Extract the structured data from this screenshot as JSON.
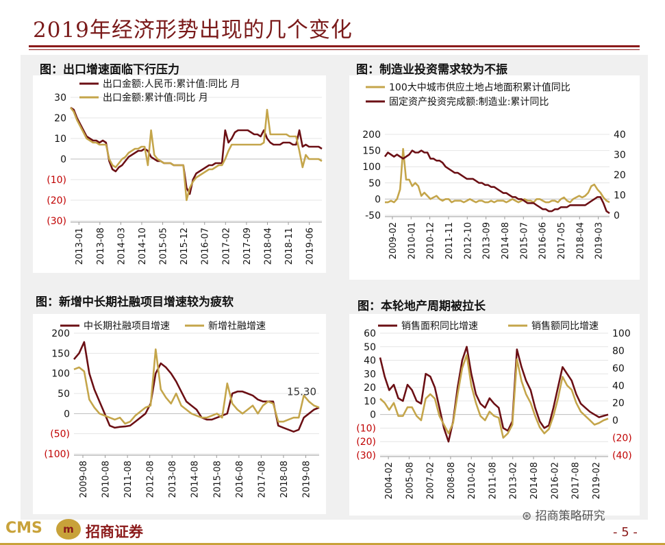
{
  "page": {
    "title": "2019年经济形势出现的几个变化",
    "page_number": "- 5 -",
    "wechat": "招商策略研究",
    "logo": "CMS",
    "brand": "招商证券",
    "colors": {
      "dark": "#6b0f14",
      "gold": "#c4a54a",
      "red_label": "#c00000"
    }
  },
  "chart_data": [
    {
      "type": "line",
      "panel_title": "图：出口增速面临下行压力",
      "y_ticks": [
        "30",
        "20",
        "10",
        "0",
        "(10)",
        "(20)",
        "(30)"
      ],
      "ylim": [
        -30,
        30
      ],
      "x_ticks": [
        "2013-01",
        "2013-08",
        "2014-03",
        "2014-10",
        "2015-05",
        "2015-12",
        "2016-07",
        "2017-02",
        "2017-09",
        "2018-04",
        "2018-11",
        "2019-06"
      ],
      "series": [
        {
          "name": "出口金额:人民币:累计值:同比  月",
          "color": "#6b0f14",
          "values": [
            25,
            24,
            20,
            17,
            14,
            11,
            10,
            9,
            9,
            8,
            9,
            8,
            -1,
            -5,
            -6,
            -4,
            -3,
            -1,
            1,
            2,
            3,
            4,
            4,
            5,
            4,
            1,
            0,
            -1,
            -1,
            -2,
            -2,
            -2,
            -3,
            -3,
            -3,
            -3,
            -14,
            -17,
            -10,
            -7,
            -6,
            -5,
            -4,
            -3,
            -3,
            -2,
            -2,
            -2,
            14,
            8,
            10,
            13,
            14,
            14,
            14,
            14,
            13,
            12,
            12,
            11,
            14,
            10,
            8,
            7,
            7,
            7,
            8,
            8,
            8,
            7,
            7,
            14,
            6,
            7,
            6,
            6,
            6,
            6,
            5
          ]
        },
        {
          "name": "出口金额:累计值:同比  月",
          "color": "#c4a54a",
          "values": [
            25,
            23,
            19,
            16,
            13,
            10,
            9,
            8,
            8,
            7,
            7,
            7,
            0,
            -3,
            -4,
            -2,
            0,
            1,
            3,
            4,
            5,
            5,
            6,
            6,
            -3,
            14,
            2,
            0,
            -1,
            -2,
            -2,
            -2,
            -3,
            -3,
            -3,
            -3,
            -20,
            -14,
            -11,
            -9,
            -8,
            -7,
            -6,
            -5,
            -5,
            -4,
            -3,
            -3,
            0,
            4,
            7,
            7,
            7,
            7,
            7,
            7,
            7,
            7,
            7,
            7,
            8,
            24,
            12,
            12,
            12,
            12,
            12,
            12,
            11,
            11,
            11,
            4,
            -4,
            2,
            0,
            0,
            0,
            0,
            -1
          ]
        }
      ]
    },
    {
      "type": "line",
      "panel_title": "图：制造业投资需求较为不振",
      "y_ticks_left": [
        "200",
        "150",
        "100",
        "50",
        "0",
        "-50"
      ],
      "ylim_left": [
        -50,
        200
      ],
      "y_ticks_right": [
        "40",
        "30",
        "20",
        "10",
        "0"
      ],
      "ylim_right": [
        0,
        40
      ],
      "x_ticks": [
        "2009-02",
        "2010-01",
        "2010-12",
        "2011-11",
        "2012-10",
        "2013-09",
        "2014-08",
        "2015-07",
        "2016-06",
        "2017-05",
        "2018-04",
        "2019-03"
      ],
      "series": [
        {
          "name": "100大中城市供应土地占地面积累计值同比",
          "color": "#c4a54a",
          "axis": "left",
          "values": [
            -10,
            -10,
            -5,
            -10,
            0,
            30,
            155,
            60,
            60,
            40,
            50,
            40,
            10,
            20,
            10,
            0,
            5,
            10,
            0,
            -5,
            0,
            0,
            -10,
            -5,
            -5,
            -5,
            -10,
            -5,
            0,
            -5,
            -10,
            -5,
            -5,
            -10,
            -10,
            -5,
            -10,
            -5,
            -5,
            -5,
            -10,
            -5,
            0,
            -5,
            -10,
            -5,
            0,
            -5,
            -5,
            -10,
            0,
            0,
            -5,
            -10,
            -10,
            -5,
            -5,
            -10,
            0,
            5,
            -5,
            -10,
            0,
            5,
            10,
            5,
            10,
            20,
            40,
            45,
            30,
            20,
            5,
            -5,
            -10
          ]
        },
        {
          "name": "固定资产投资完成额:制造业:累计同比",
          "color": "#6b0f14",
          "axis": "right",
          "values": [
            29,
            31,
            30,
            29,
            30,
            29,
            28,
            29,
            30,
            32,
            31,
            31,
            32,
            31,
            31,
            28,
            28,
            27,
            27,
            26,
            24,
            23,
            22,
            21,
            21,
            20,
            19,
            18,
            18,
            18,
            17,
            16,
            16,
            15,
            15,
            14,
            14,
            13,
            12,
            11,
            11,
            10,
            9,
            9,
            8,
            8,
            7,
            6,
            6,
            6,
            5,
            4,
            3,
            3,
            2,
            2,
            3,
            3,
            4,
            4,
            4,
            5,
            5,
            5,
            5,
            5,
            5,
            6,
            7,
            8,
            9,
            9,
            6,
            2,
            1
          ]
        }
      ]
    },
    {
      "type": "line",
      "panel_title": "图：新增中长期社融项目增速较为疲软",
      "y_ticks": [
        "200",
        "150",
        "100",
        "50",
        "0",
        "(50)",
        "(100)"
      ],
      "ylim": [
        -100,
        200
      ],
      "x_ticks": [
        "2009-08",
        "2010-08",
        "2011-08",
        "2012-08",
        "2013-08",
        "2014-08",
        "2015-08",
        "2016-08",
        "2017-08",
        "2018-08",
        "2019-08"
      ],
      "annotation": "15.30",
      "series": [
        {
          "name": "中长期社融项目增速",
          "color": "#6b0f14",
          "values": [
            135,
            150,
            178,
            100,
            60,
            30,
            0,
            -30,
            -35,
            -33,
            -32,
            -30,
            -20,
            -10,
            0,
            25,
            100,
            125,
            115,
            100,
            80,
            55,
            30,
            20,
            10,
            -10,
            -15,
            -15,
            -10,
            -5,
            0,
            50,
            55,
            55,
            50,
            45,
            35,
            30,
            30,
            30,
            -30,
            -35,
            -40,
            -45,
            -40,
            -10,
            0,
            10,
            15
          ]
        },
        {
          "name": "新增社融增速",
          "color": "#c4a54a",
          "values": [
            110,
            115,
            105,
            35,
            15,
            0,
            -5,
            -10,
            -15,
            -10,
            -25,
            -20,
            -5,
            5,
            15,
            20,
            160,
            60,
            40,
            25,
            50,
            20,
            10,
            0,
            -5,
            -10,
            -10,
            -5,
            0,
            -10,
            75,
            25,
            10,
            0,
            10,
            20,
            0,
            20,
            30,
            25,
            -20,
            -20,
            -15,
            -10,
            -10,
            45,
            30,
            20,
            15.3
          ]
        }
      ]
    },
    {
      "type": "line",
      "panel_title": "图：本轮地产周期被拉长",
      "y_ticks_left": [
        "60",
        "50",
        "40",
        "30",
        "20",
        "10",
        "0",
        "(10)",
        "(20)",
        "(30)"
      ],
      "ylim_left": [
        -30,
        60
      ],
      "y_ticks_right": [
        "100",
        "80",
        "60",
        "40",
        "20",
        "0",
        "(20)",
        "(40)"
      ],
      "ylim_right": [
        -40,
        100
      ],
      "x_ticks": [
        "2004-02",
        "2005-08",
        "2007-02",
        "2008-08",
        "2010-02",
        "2011-08",
        "2013-02",
        "2014-08",
        "2016-02",
        "2017-08",
        "2019-02"
      ],
      "series": [
        {
          "name": "销售面积同比增速",
          "color": "#6b0f14",
          "axis": "left",
          "values": [
            42,
            28,
            18,
            22,
            12,
            10,
            22,
            18,
            10,
            8,
            30,
            28,
            20,
            5,
            -10,
            -20,
            -5,
            20,
            40,
            50,
            30,
            15,
            8,
            5,
            12,
            8,
            5,
            -10,
            -12,
            -5,
            48,
            35,
            25,
            18,
            5,
            -5,
            -10,
            -8,
            5,
            20,
            35,
            30,
            25,
            15,
            8,
            5,
            2,
            0,
            -2,
            -1,
            0
          ]
        },
        {
          "name": "销售额同比增速",
          "color": "#c4a54a",
          "axis": "right",
          "values": [
            25,
            20,
            12,
            20,
            5,
            5,
            15,
            15,
            5,
            0,
            25,
            30,
            25,
            5,
            -5,
            -15,
            -3,
            30,
            60,
            75,
            40,
            20,
            5,
            0,
            10,
            5,
            3,
            -20,
            -15,
            -5,
            70,
            45,
            30,
            20,
            5,
            -8,
            -15,
            -10,
            5,
            25,
            50,
            40,
            35,
            20,
            10,
            5,
            0,
            -5,
            -3,
            0,
            2
          ]
        }
      ]
    }
  ]
}
